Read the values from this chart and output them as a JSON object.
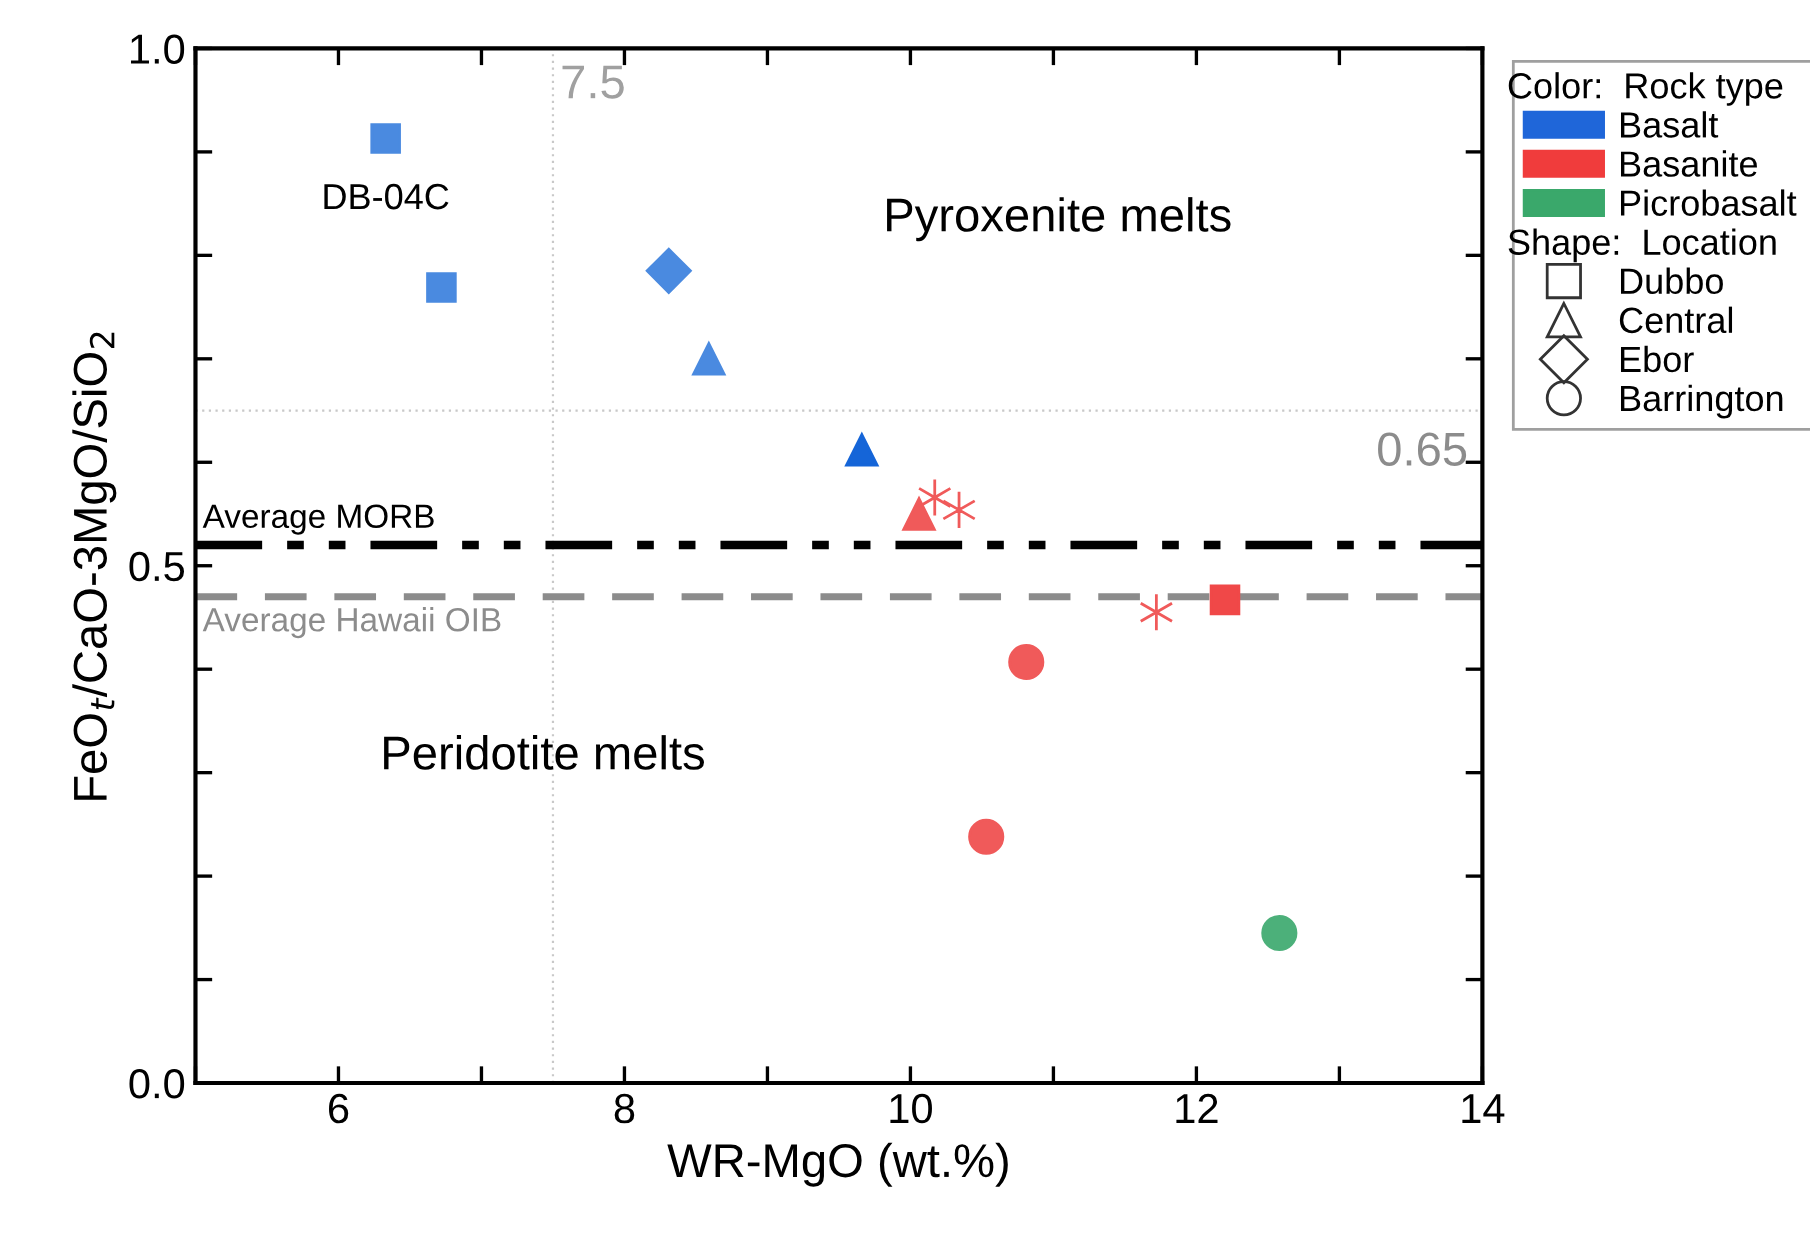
{
  "chart_data": {
    "type": "scatter",
    "xlabel": "WR-MgO (wt.%)",
    "ylabel": "FeO$_{t}$/CaO-3MgO/SiO$_{2}$",
    "xlim": [
      5,
      14
    ],
    "ylim": [
      0,
      1
    ],
    "xticks": [
      {
        "value": 5,
        "label": null
      },
      6,
      {
        "value": 7,
        "label": null
      },
      8,
      {
        "value": 9,
        "label": null
      },
      10,
      {
        "value": 11,
        "label": null
      },
      12,
      {
        "value": 13,
        "label": null
      },
      14
    ],
    "yticks": [
      {
        "value": 0,
        "label": "0.0"
      },
      {
        "value": 0.1,
        "label": null
      },
      {
        "value": 0.2,
        "label": null
      },
      {
        "value": 0.3,
        "label": null
      },
      {
        "value": 0.4,
        "label": null
      },
      {
        "value": 0.5,
        "label": "0.5"
      },
      {
        "value": 0.6,
        "label": null
      },
      {
        "value": 0.7,
        "label": null
      },
      {
        "value": 0.8,
        "label": null
      },
      {
        "value": 0.9,
        "label": null
      },
      {
        "value": 1.0,
        "label": "1.0"
      }
    ],
    "grid": false,
    "legend": "top right",
    "legend_title": [
      "Color:  Rock type",
      "Shape:  Location"
    ],
    "series": [
      {
        "name": "Basalt",
        "color": "#1f66d9"
      },
      {
        "name": "Basanite",
        "color": "#f03c3c"
      },
      {
        "name": "Picrobasalt",
        "color": "#3aa86b"
      },
      {
        "marker": "square",
        "x": [
          6.33,
          6.72,
          12.2
        ],
        "values": [
          0.913,
          0.769,
          0.467
        ],
        "colors": [
          "#4a8ae0",
          "#4a8ae0",
          "#f04848"
        ]
      },
      {
        "marker": "triangle",
        "x": [
          8.59,
          9.66,
          10.06
        ],
        "values": [
          0.7,
          0.612,
          0.55
        ],
        "colors": [
          "#4a8ae0",
          "#1565d8",
          "#f05a5a"
        ]
      },
      {
        "marker": "diamond",
        "x": [
          8.31
        ],
        "values": [
          0.785
        ],
        "colors": [
          "#4a8ae0"
        ]
      },
      {
        "marker": "circle",
        "x": [
          10.81,
          10.53,
          12.58
        ],
        "values": [
          0.407,
          0.238,
          0.145
        ],
        "colors": [
          "#f05a5a",
          "#f05a5a",
          "#4cb07a"
        ]
      },
      {
        "marker": "cross",
        "x": [
          10.17,
          10.34,
          11.72
        ],
        "values": [
          0.566,
          0.554,
          0.455
        ],
        "colors": [
          "#f05a5a",
          "#f05a5a",
          "#f05a5a"
        ]
      }
    ],
    "ref_lines": [
      {
        "axis": "x",
        "value": 7.5,
        "label": "7.5",
        "color": "#c8c8c8",
        "line_style": "dotted"
      },
      {
        "axis": "y",
        "value": 0.65,
        "label": "0.65",
        "color": "#c8c8c8",
        "line_style": "dotted"
      },
      {
        "axis": "y",
        "value": 0.52,
        "label": "Average MORB",
        "color": "#000000",
        "line_style": "dashdotdot"
      },
      {
        "axis": "y",
        "value": 0.47,
        "label": "Average Hawaii OIB",
        "color": "#8c8c8c",
        "line_style": "dashed"
      }
    ],
    "annotations": [
      {
        "text": "DB-04C",
        "x": 6.33,
        "y": 0.913
      },
      "Pyroxenite melts",
      "Peridotite melts",
      "Dubbo",
      "Central",
      "Ebor",
      "Barrington"
    ]
  }
}
